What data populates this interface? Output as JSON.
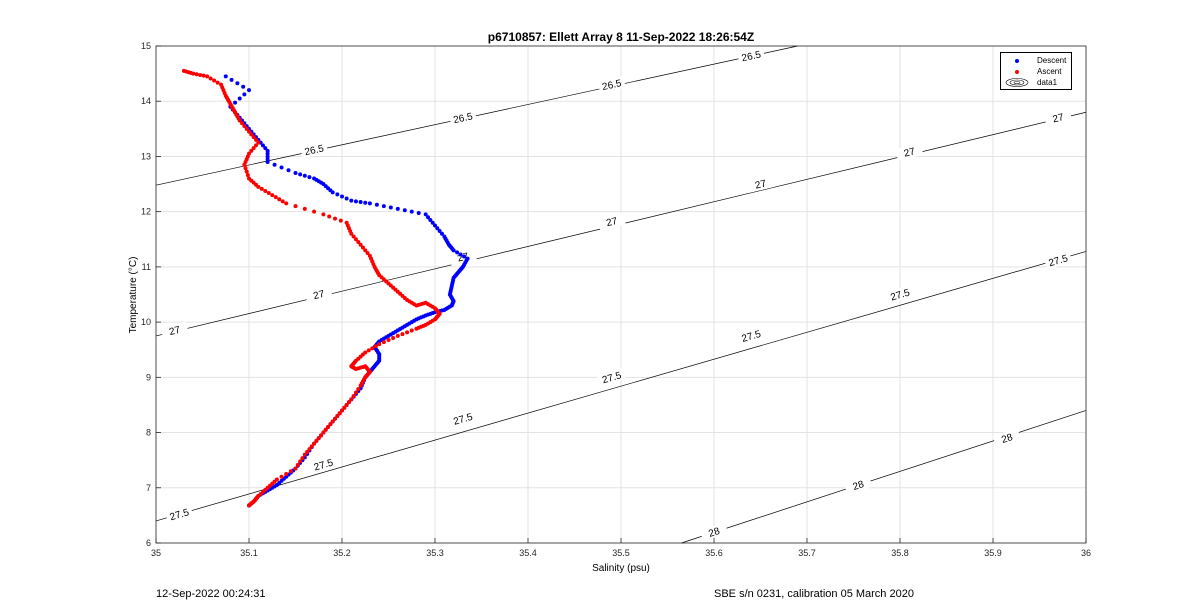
{
  "chart_data": {
    "type": "scatter",
    "title": "p6710857: Ellett Array 8 11-Sep-2022 18:26:54Z",
    "xlabel": "Salinity (psu)",
    "ylabel": "Temperature (°C)",
    "xlim": [
      35,
      36
    ],
    "ylim": [
      6,
      15
    ],
    "xticks": [
      "35",
      "35.1",
      "35.2",
      "35.3",
      "35.4",
      "35.5",
      "35.6",
      "35.7",
      "35.8",
      "35.9",
      "36"
    ],
    "yticks": [
      "6",
      "7",
      "8",
      "9",
      "10",
      "11",
      "12",
      "13",
      "14",
      "15"
    ],
    "grid": true,
    "legend_position": "top-right",
    "series": [
      {
        "name": "Descent",
        "color": "#0000ff",
        "marker": "dot",
        "points": [
          [
            35.075,
            14.45
          ],
          [
            35.1,
            14.2
          ],
          [
            35.08,
            13.9
          ],
          [
            35.09,
            13.7
          ],
          [
            35.1,
            13.5
          ],
          [
            35.11,
            13.3
          ],
          [
            35.12,
            13.1
          ],
          [
            35.12,
            12.9
          ],
          [
            35.15,
            12.7
          ],
          [
            35.17,
            12.6
          ],
          [
            35.18,
            12.5
          ],
          [
            35.19,
            12.35
          ],
          [
            35.21,
            12.2
          ],
          [
            35.23,
            12.15
          ],
          [
            35.26,
            12.05
          ],
          [
            35.29,
            11.95
          ],
          [
            35.3,
            11.75
          ],
          [
            35.31,
            11.55
          ],
          [
            35.315,
            11.4
          ],
          [
            35.32,
            11.3
          ],
          [
            35.335,
            11.15
          ],
          [
            35.33,
            11.0
          ],
          [
            35.325,
            10.9
          ],
          [
            35.32,
            10.8
          ],
          [
            35.318,
            10.65
          ],
          [
            35.316,
            10.5
          ],
          [
            35.32,
            10.38
          ],
          [
            35.318,
            10.3
          ],
          [
            35.31,
            10.22
          ],
          [
            35.3,
            10.18
          ],
          [
            35.29,
            10.12
          ],
          [
            35.28,
            10.05
          ],
          [
            35.27,
            9.95
          ],
          [
            35.26,
            9.85
          ],
          [
            35.25,
            9.75
          ],
          [
            35.24,
            9.65
          ],
          [
            35.235,
            9.55
          ],
          [
            35.24,
            9.42
          ],
          [
            35.24,
            9.3
          ],
          [
            35.235,
            9.2
          ],
          [
            35.23,
            9.1
          ],
          [
            35.225,
            9.0
          ],
          [
            35.22,
            8.8
          ],
          [
            35.21,
            8.6
          ],
          [
            35.2,
            8.4
          ],
          [
            35.19,
            8.2
          ],
          [
            35.18,
            8.0
          ],
          [
            35.17,
            7.8
          ],
          [
            35.16,
            7.55
          ],
          [
            35.15,
            7.35
          ],
          [
            35.14,
            7.2
          ],
          [
            35.13,
            7.05
          ],
          [
            35.12,
            6.95
          ],
          [
            35.11,
            6.85
          ],
          [
            35.105,
            6.75
          ],
          [
            35.1,
            6.68
          ]
        ]
      },
      {
        "name": "Ascent",
        "color": "#ff0000",
        "marker": "dot",
        "points": [
          [
            35.03,
            14.55
          ],
          [
            35.04,
            14.5
          ],
          [
            35.055,
            14.45
          ],
          [
            35.07,
            14.3
          ],
          [
            35.075,
            14.1
          ],
          [
            35.08,
            13.95
          ],
          [
            35.085,
            13.8
          ],
          [
            35.09,
            13.65
          ],
          [
            35.1,
            13.45
          ],
          [
            35.11,
            13.25
          ],
          [
            35.1,
            13.05
          ],
          [
            35.095,
            12.85
          ],
          [
            35.1,
            12.6
          ],
          [
            35.11,
            12.45
          ],
          [
            35.125,
            12.3
          ],
          [
            35.14,
            12.15
          ],
          [
            35.18,
            11.95
          ],
          [
            35.205,
            11.8
          ],
          [
            35.21,
            11.6
          ],
          [
            35.22,
            11.4
          ],
          [
            35.23,
            11.2
          ],
          [
            35.235,
            11.0
          ],
          [
            35.24,
            10.85
          ],
          [
            35.25,
            10.7
          ],
          [
            35.26,
            10.55
          ],
          [
            35.27,
            10.4
          ],
          [
            35.28,
            10.3
          ],
          [
            35.29,
            10.35
          ],
          [
            35.3,
            10.25
          ],
          [
            35.305,
            10.15
          ],
          [
            35.3,
            10.05
          ],
          [
            35.29,
            9.95
          ],
          [
            35.28,
            9.88
          ],
          [
            35.26,
            9.75
          ],
          [
            35.24,
            9.6
          ],
          [
            35.225,
            9.45
          ],
          [
            35.215,
            9.3
          ],
          [
            35.21,
            9.2
          ],
          [
            35.215,
            9.15
          ],
          [
            35.225,
            9.2
          ],
          [
            35.23,
            9.1
          ],
          [
            35.225,
            9.0
          ],
          [
            35.22,
            8.85
          ],
          [
            35.21,
            8.6
          ],
          [
            35.2,
            8.4
          ],
          [
            35.19,
            8.2
          ],
          [
            35.18,
            8.0
          ],
          [
            35.17,
            7.8
          ],
          [
            35.16,
            7.6
          ],
          [
            35.15,
            7.35
          ],
          [
            35.13,
            7.15
          ],
          [
            35.12,
            7.0
          ],
          [
            35.11,
            6.85
          ],
          [
            35.105,
            6.75
          ],
          [
            35.1,
            6.68
          ]
        ]
      }
    ],
    "contours": [
      {
        "level": 26.5,
        "label": "26.5",
        "from": [
          35.0,
          12.48
        ],
        "to": [
          35.69,
          15.0
        ],
        "label_positions": [
          [
            35.17,
            13.12
          ],
          [
            35.33,
            13.7
          ],
          [
            35.49,
            14.3
          ],
          [
            35.64,
            14.82
          ]
        ]
      },
      {
        "level": 27,
        "label": "27",
        "from": [
          35.0,
          9.75
        ],
        "to": [
          36.0,
          13.8
        ],
        "label_positions": [
          [
            35.02,
            9.85
          ],
          [
            35.175,
            10.5
          ],
          [
            35.33,
            11.18
          ],
          [
            35.49,
            11.82
          ],
          [
            35.65,
            12.5
          ],
          [
            35.81,
            13.08
          ],
          [
            35.97,
            13.7
          ]
        ]
      },
      {
        "level": 27.5,
        "label": "27.5",
        "from": [
          35.0,
          6.4
        ],
        "to": [
          36.0,
          11.28
        ],
        "label_positions": [
          [
            35.025,
            6.52
          ],
          [
            35.18,
            7.42
          ],
          [
            35.33,
            8.25
          ],
          [
            35.49,
            9.0
          ],
          [
            35.64,
            9.75
          ],
          [
            35.8,
            10.5
          ],
          [
            35.97,
            11.12
          ]
        ]
      },
      {
        "level": 28,
        "label": "28",
        "from": [
          35.565,
          6.0
        ],
        "to": [
          36.0,
          8.4
        ],
        "label_positions": [
          [
            35.6,
            6.2
          ],
          [
            35.755,
            7.05
          ],
          [
            35.915,
            7.9
          ]
        ]
      }
    ],
    "legend_entries": [
      "Descent",
      "Ascent",
      "data1"
    ]
  },
  "footer": {
    "timestamp": "12-Sep-2022 00:24:31",
    "instrument": "SBE s/n 0231, calibration 05 March 2020"
  },
  "legend": {
    "descent_label": "Descent",
    "ascent_label": "Ascent",
    "data1_label": "data1"
  }
}
